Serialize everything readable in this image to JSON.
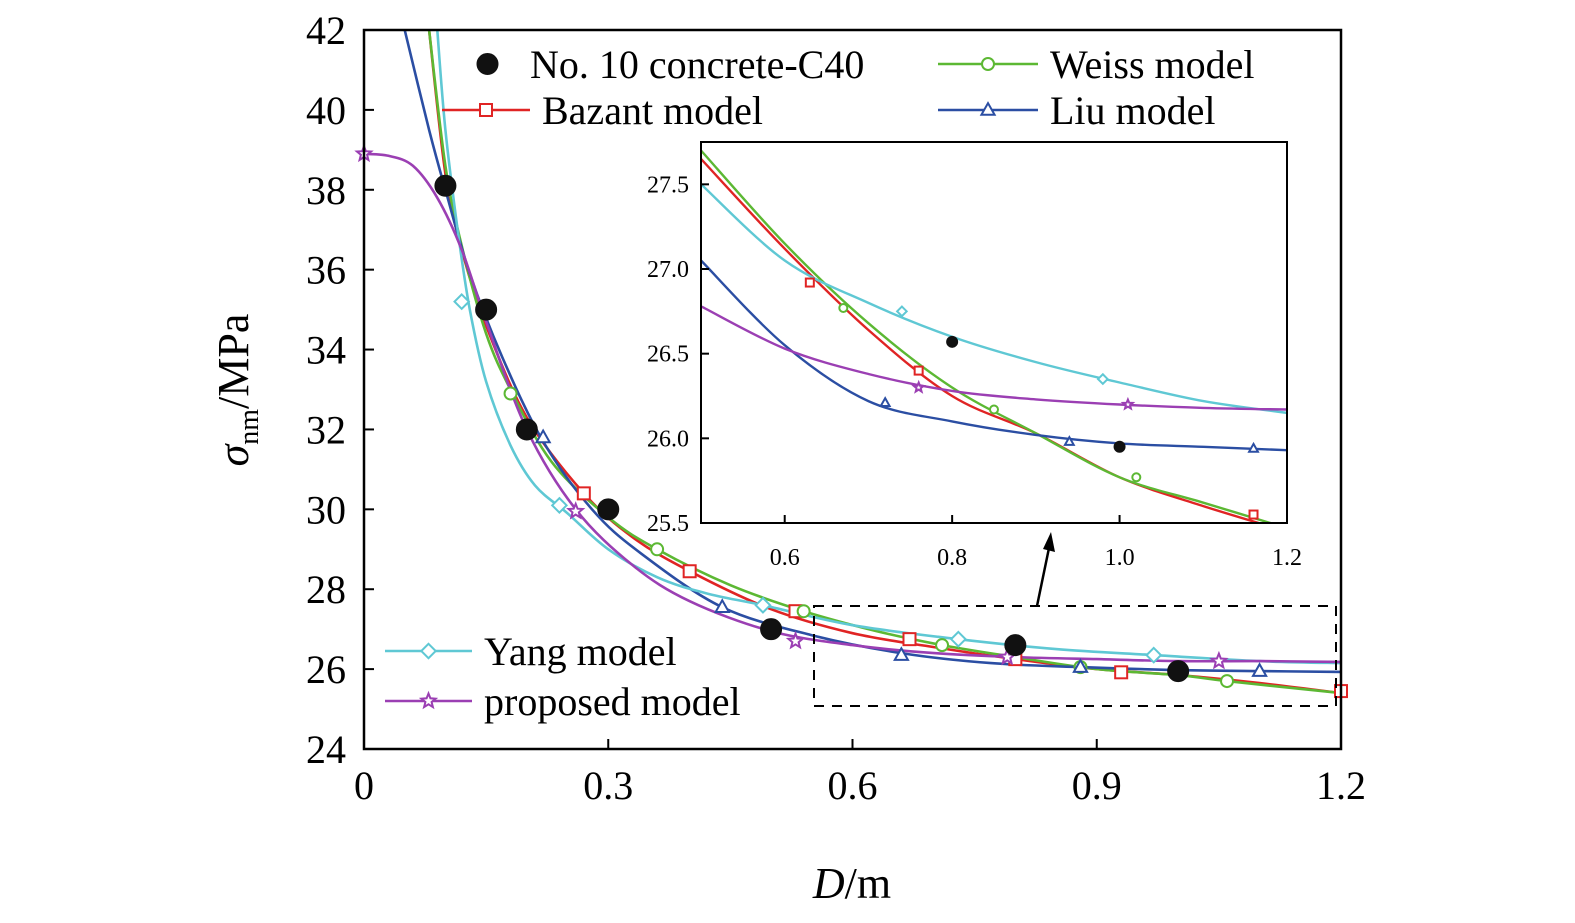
{
  "colors": {
    "bazant": "#e02424",
    "weiss": "#5cb833",
    "liu": "#2b4ea3",
    "yang": "#5fc8d4",
    "proposed": "#9b3fb3",
    "experiment": "#111111"
  },
  "chart_data": [
    {
      "type": "line",
      "title": "",
      "xlabel": "D/m",
      "xlabel_italic": "D",
      "xlabel_unit": "/m",
      "ylabel": "σnm/MPa",
      "ylabel_symbol": "σ",
      "ylabel_subscript": "nm",
      "ylabel_unit": "/MPa",
      "xlim": [
        0,
        1.2
      ],
      "ylim": [
        24,
        42
      ],
      "xticks": [
        0,
        0.3,
        0.6,
        0.9,
        1.2
      ],
      "xtick_labels": [
        "0",
        "0.3",
        "0.6",
        "0.9",
        "1.2"
      ],
      "yticks": [
        24,
        26,
        28,
        30,
        32,
        34,
        36,
        38,
        40,
        42
      ],
      "ytick_labels": [
        "24",
        "26",
        "28",
        "30",
        "32",
        "34",
        "36",
        "38",
        "40",
        "42"
      ],
      "grid": false,
      "legend_placement": "top and bottom-left",
      "experimental": {
        "name": "No. 10 concrete-C40",
        "marker": "filled-circle",
        "x": [
          0.1,
          0.15,
          0.2,
          0.3,
          0.5,
          0.8,
          1.0
        ],
        "y": [
          38.1,
          35.0,
          32.0,
          30.0,
          27.0,
          26.6,
          25.95
        ]
      },
      "series": [
        {
          "name": "Bazant model",
          "marker": "open-square",
          "color_key": "bazant",
          "x": [
            0.08,
            0.1,
            0.12,
            0.15,
            0.2,
            0.27,
            0.33,
            0.4,
            0.5,
            0.6,
            0.7,
            0.8,
            0.9,
            1.0,
            1.1,
            1.2
          ],
          "y": [
            42.0,
            38.4,
            36.5,
            34.6,
            32.3,
            30.4,
            29.3,
            28.45,
            27.5,
            26.9,
            26.55,
            26.25,
            26.0,
            25.85,
            25.65,
            25.4
          ],
          "marker_x": [
            0.27,
            0.4,
            0.53,
            0.67,
            0.8,
            0.93,
            1.2
          ],
          "marker_y": [
            30.4,
            28.45,
            27.45,
            26.75,
            26.25,
            25.92,
            25.45
          ]
        },
        {
          "name": "Weiss model",
          "marker": "open-circle",
          "color_key": "weiss",
          "x": [
            0.08,
            0.1,
            0.12,
            0.15,
            0.18,
            0.23,
            0.3,
            0.36,
            0.45,
            0.54,
            0.63,
            0.71,
            0.8,
            0.9,
            1.0,
            1.06,
            1.2
          ],
          "y": [
            42.0,
            38.6,
            36.6,
            34.4,
            33.0,
            31.2,
            29.8,
            29.0,
            28.1,
            27.45,
            26.95,
            26.6,
            26.3,
            26.0,
            25.85,
            25.7,
            25.4
          ],
          "marker_x": [
            0.18,
            0.36,
            0.54,
            0.71,
            0.88,
            1.06
          ],
          "marker_y": [
            32.9,
            29.0,
            27.45,
            26.6,
            26.05,
            25.7
          ]
        },
        {
          "name": "Liu model",
          "marker": "open-triangle",
          "color_key": "liu",
          "x": [
            0.05,
            0.08,
            0.1,
            0.13,
            0.17,
            0.22,
            0.28,
            0.34,
            0.44,
            0.55,
            0.66,
            0.77,
            0.88,
            0.99,
            1.1,
            1.2
          ],
          "y": [
            42.0,
            39.5,
            38.0,
            35.9,
            33.8,
            31.7,
            30.0,
            28.9,
            27.55,
            26.85,
            26.4,
            26.15,
            26.05,
            25.98,
            25.95,
            25.93
          ],
          "marker_x": [
            0.22,
            0.44,
            0.66,
            0.88,
            1.1
          ],
          "marker_y": [
            31.8,
            27.55,
            26.35,
            26.05,
            25.95
          ]
        },
        {
          "name": "Yang model",
          "marker": "open-diamond",
          "color_key": "yang",
          "x": [
            0.09,
            0.1,
            0.115,
            0.13,
            0.15,
            0.18,
            0.21,
            0.25,
            0.3,
            0.36,
            0.42,
            0.49,
            0.6,
            0.73,
            0.85,
            0.97,
            1.1,
            1.2
          ],
          "y": [
            42.0,
            39.5,
            37.0,
            35.0,
            33.2,
            31.6,
            30.6,
            29.9,
            29.0,
            28.3,
            27.9,
            27.6,
            27.1,
            26.75,
            26.5,
            26.35,
            26.2,
            26.15
          ],
          "marker_x": [
            0.12,
            0.24,
            0.49,
            0.73,
            0.97
          ],
          "marker_y": [
            35.2,
            30.1,
            27.6,
            26.75,
            26.35
          ]
        },
        {
          "name": "proposed model",
          "marker": "open-star",
          "color_key": "proposed",
          "x": [
            0.0,
            0.03,
            0.06,
            0.09,
            0.12,
            0.15,
            0.2,
            0.26,
            0.33,
            0.4,
            0.5,
            0.6,
            0.7,
            0.8,
            0.9,
            1.0,
            1.1,
            1.2
          ],
          "y": [
            38.9,
            38.85,
            38.6,
            37.8,
            36.5,
            34.7,
            32.0,
            30.0,
            28.6,
            27.7,
            26.95,
            26.6,
            26.4,
            26.3,
            26.25,
            26.2,
            26.2,
            26.18
          ],
          "marker_x": [
            0.0,
            0.26,
            0.53,
            0.79,
            1.05
          ],
          "marker_y": [
            38.9,
            29.95,
            26.7,
            26.3,
            26.2
          ]
        }
      ]
    },
    {
      "type": "line",
      "title": "",
      "inset": true,
      "xlim": [
        0.5,
        1.2
      ],
      "ylim": [
        25.5,
        27.75
      ],
      "xticks": [
        0.6,
        0.8,
        1.0,
        1.2
      ],
      "xtick_labels": [
        "0.6",
        "0.8",
        "1.0",
        "1.2"
      ],
      "yticks": [
        25.5,
        26.0,
        26.5,
        27.0,
        27.5
      ],
      "ytick_labels": [
        "25.5",
        "26.0",
        "26.5",
        "27.0",
        "27.5"
      ],
      "grid": false,
      "experimental": {
        "x": [
          0.8,
          1.0
        ],
        "y": [
          26.57,
          25.95
        ]
      },
      "series": [
        {
          "name": "Bazant model",
          "color_key": "bazant",
          "x": [
            0.5,
            0.6,
            0.7,
            0.8,
            0.9,
            1.0,
            1.1,
            1.2
          ],
          "y": [
            27.65,
            27.12,
            26.64,
            26.25,
            26.03,
            25.77,
            25.6,
            25.45
          ],
          "marker_x": [
            0.63,
            0.76,
            1.16
          ],
          "marker_y": [
            26.92,
            26.4,
            25.55
          ]
        },
        {
          "name": "Weiss model",
          "color_key": "weiss",
          "x": [
            0.5,
            0.6,
            0.7,
            0.8,
            0.9,
            1.0,
            1.1,
            1.2
          ],
          "y": [
            27.7,
            27.15,
            26.68,
            26.3,
            26.03,
            25.77,
            25.62,
            25.47
          ],
          "marker_x": [
            0.67,
            0.85,
            1.02
          ],
          "marker_y": [
            26.77,
            26.17,
            25.77
          ]
        },
        {
          "name": "Liu model",
          "color_key": "liu",
          "x": [
            0.5,
            0.6,
            0.7,
            0.8,
            0.9,
            1.0,
            1.1,
            1.2
          ],
          "y": [
            27.05,
            26.55,
            26.22,
            26.1,
            26.02,
            25.97,
            25.95,
            25.93
          ],
          "marker_x": [
            0.72,
            0.94,
            1.16
          ],
          "marker_y": [
            26.21,
            25.98,
            25.94
          ]
        },
        {
          "name": "Yang model",
          "color_key": "yang",
          "x": [
            0.5,
            0.6,
            0.7,
            0.8,
            0.9,
            1.0,
            1.1,
            1.2
          ],
          "y": [
            27.5,
            27.05,
            26.8,
            26.6,
            26.45,
            26.33,
            26.22,
            26.15
          ],
          "marker_x": [
            0.74,
            0.98
          ],
          "marker_y": [
            26.75,
            26.35
          ]
        },
        {
          "name": "proposed model",
          "color_key": "proposed",
          "x": [
            0.5,
            0.6,
            0.7,
            0.8,
            0.9,
            1.0,
            1.1,
            1.2
          ],
          "y": [
            26.78,
            26.53,
            26.38,
            26.28,
            26.23,
            26.2,
            26.18,
            26.17
          ],
          "marker_x": [
            0.76,
            1.01
          ],
          "marker_y": [
            26.3,
            26.2
          ]
        }
      ]
    }
  ]
}
